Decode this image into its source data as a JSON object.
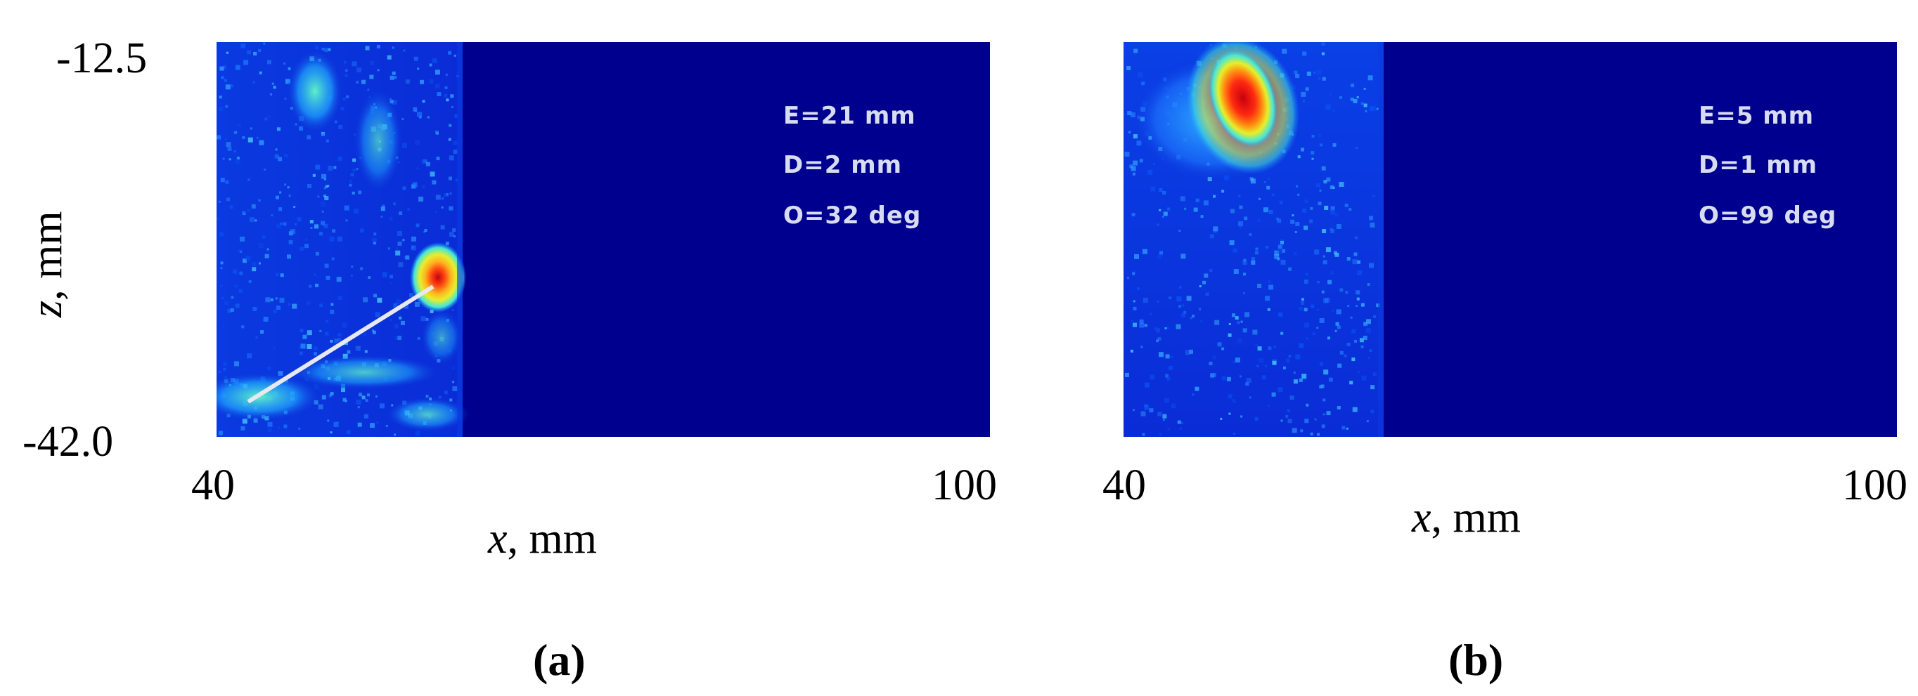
{
  "chart_data": [
    {
      "type": "heatmap",
      "panel_label": "(a)",
      "xlabel": {
        "var": "x",
        "unit": ", mm"
      },
      "ylabel": {
        "var": "z",
        "unit": ", mm"
      },
      "xlim": [
        40,
        100
      ],
      "ylim": [
        -42.0,
        -12.5
      ],
      "x_ticks": [
        "40",
        "100"
      ],
      "y_ticks": [
        "-12.5",
        "-42.0"
      ],
      "colormap": "jet",
      "data_region_x": [
        40,
        59
      ],
      "hotspot": {
        "x": 56.5,
        "z": -31.5
      },
      "pointer_line": {
        "from": [
          42,
          -40
        ],
        "to": [
          56.5,
          -31.5
        ]
      },
      "annotations": [
        "E=21  mm",
        "D=2  mm",
        "O=32  deg"
      ]
    },
    {
      "type": "heatmap",
      "panel_label": "(b)",
      "xlabel": {
        "var": "x",
        "unit": ", mm"
      },
      "ylabel": null,
      "xlim": [
        40,
        100
      ],
      "ylim": [
        -42.0,
        -12.5
      ],
      "x_ticks": [
        "40",
        "100"
      ],
      "y_ticks": [],
      "colormap": "jet",
      "data_region_x": [
        40,
        60
      ],
      "hotspot": {
        "x": 49.5,
        "z": -16
      },
      "annotations": [
        "E=5  mm",
        "D=1  mm",
        "O=99  deg"
      ]
    }
  ],
  "colors": {
    "background": "#00008f",
    "low": "#0a2cd6",
    "mid": "#1fa6ff",
    "high_cyan": "#44e6d8",
    "yellow": "#e7ef2a",
    "orange": "#ff8a10",
    "hot": "#c80010"
  }
}
